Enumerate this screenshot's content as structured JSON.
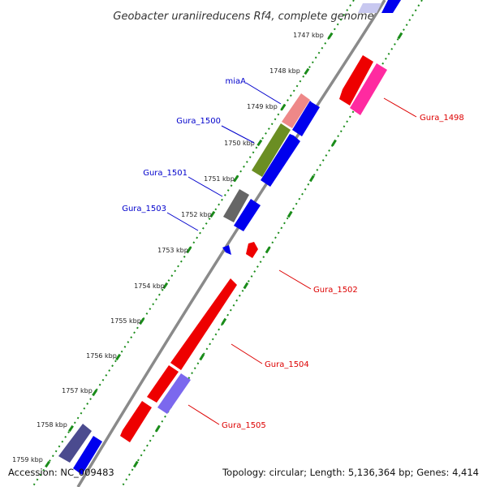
{
  "title": "Geobacter uraniireducens Rf4, complete genome",
  "footer": {
    "accession": "Accession: NC_009483",
    "summary": "Topology: circular; Length: 5,136,364 bp; Genes: 4,414"
  },
  "ticks": [
    "1747 kbp",
    "1748 kbp",
    "1749 kbp",
    "1750 kbp",
    "1751 kbp",
    "1752 kbp",
    "1753 kbp",
    "1754 kbp",
    "1755 kbp",
    "1756 kbp",
    "1757 kbp",
    "1758 kbp",
    "1759 kbp"
  ],
  "gene_labels": [
    {
      "name": "miaA",
      "strand": "forward",
      "color": "#0000cc"
    },
    {
      "name": "Gura_1500",
      "strand": "forward",
      "color": "#0000cc"
    },
    {
      "name": "Gura_1501",
      "strand": "forward",
      "color": "#0000cc"
    },
    {
      "name": "Gura_1503",
      "strand": "forward",
      "color": "#0000cc"
    },
    {
      "name": "Gura_1498",
      "strand": "reverse",
      "color": "#dd0000"
    },
    {
      "name": "Gura_1502",
      "strand": "reverse",
      "color": "#dd0000"
    },
    {
      "name": "Gura_1504",
      "strand": "reverse",
      "color": "#dd0000"
    },
    {
      "name": "Gura_1505",
      "strand": "reverse",
      "color": "#dd0000"
    }
  ],
  "colors": {
    "forward_cds": "#0000ee",
    "reverse_cds": "#ee0000",
    "backbone": "#888888",
    "tick_dots": "#1a8c1a",
    "miaA": "#ee8888",
    "gura_1500": "#6b8e23",
    "gura_1501": "#666666",
    "gura_1498": "#ff2aa0",
    "gura_1505": "#7b68ee",
    "dark_feature": "#4b4b8f"
  }
}
